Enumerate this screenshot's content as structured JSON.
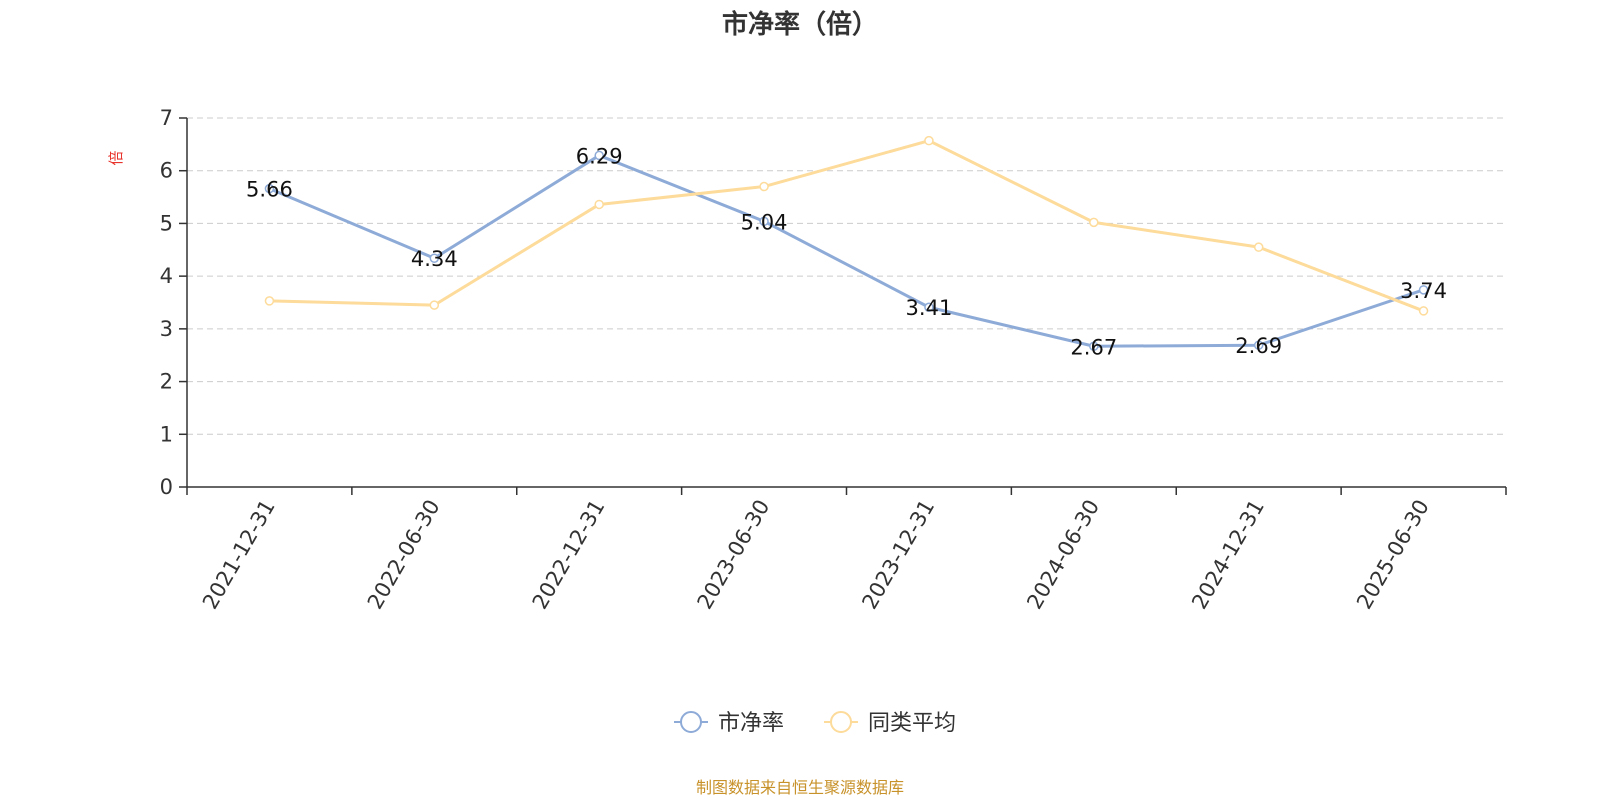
{
  "chart_data": {
    "type": "line",
    "title": "市净率（倍）",
    "ylabel": "倍",
    "categories": [
      "2021-12-31",
      "2022-06-30",
      "2022-12-31",
      "2023-06-30",
      "2023-12-31",
      "2024-06-30",
      "2024-12-31",
      "2025-06-30"
    ],
    "series": [
      {
        "name": "市净率",
        "color": "#8eabd8",
        "values": [
          5.66,
          4.34,
          6.29,
          5.04,
          3.41,
          2.67,
          2.69,
          3.74
        ],
        "labels": [
          "5.66",
          "4.34",
          "6.29",
          "5.04",
          "3.41",
          "2.67",
          "2.69",
          "3.74"
        ]
      },
      {
        "name": "同类平均",
        "color": "#fddb9a",
        "values": [
          3.53,
          3.45,
          5.36,
          5.7,
          6.57,
          5.02,
          4.55,
          3.34
        ]
      }
    ],
    "ylim": [
      0,
      7
    ],
    "yticks": [
      "0",
      "1",
      "2",
      "3",
      "4",
      "5",
      "6",
      "7"
    ],
    "grid": true,
    "legend_position": "bottom"
  },
  "footer": "制图数据来自恒生聚源数据库"
}
